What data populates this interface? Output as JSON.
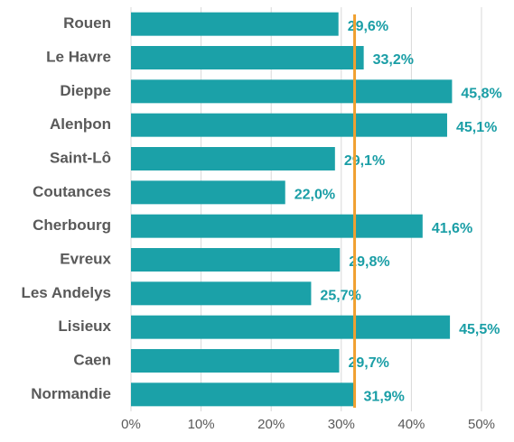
{
  "chart_data": {
    "type": "hbar",
    "categories": [
      "Rouen",
      "Le Havre",
      "Dieppe",
      "Alenþon",
      "Saint-Lô",
      "Coutances",
      "Cherbourg",
      "Evreux",
      "Les Andelys",
      "Lisieux",
      "Caen",
      "Normandie"
    ],
    "values": [
      29.6,
      33.2,
      45.8,
      45.1,
      29.1,
      22.0,
      41.6,
      29.8,
      25.7,
      45.5,
      29.7,
      31.9
    ],
    "value_labels": [
      "29,6%",
      "33,2%",
      "45,8%",
      "45,1%",
      "29,1%",
      "22,0%",
      "41,6%",
      "29,8%",
      "25,7%",
      "45,5%",
      "29,7%",
      "31,9%"
    ],
    "color": "#1ba1a8",
    "reference_line_color": "#f0a030",
    "xlim": [
      0,
      50
    ],
    "xticks": [
      {
        "value": 0,
        "label": "0%"
      },
      {
        "value": 10,
        "label": "10%"
      },
      {
        "value": 20,
        "label": "20%"
      },
      {
        "value": 30,
        "label": "30%"
      },
      {
        "value": 40,
        "label": "40%"
      },
      {
        "value": 50,
        "label": "50%"
      }
    ],
    "grid": true
  }
}
